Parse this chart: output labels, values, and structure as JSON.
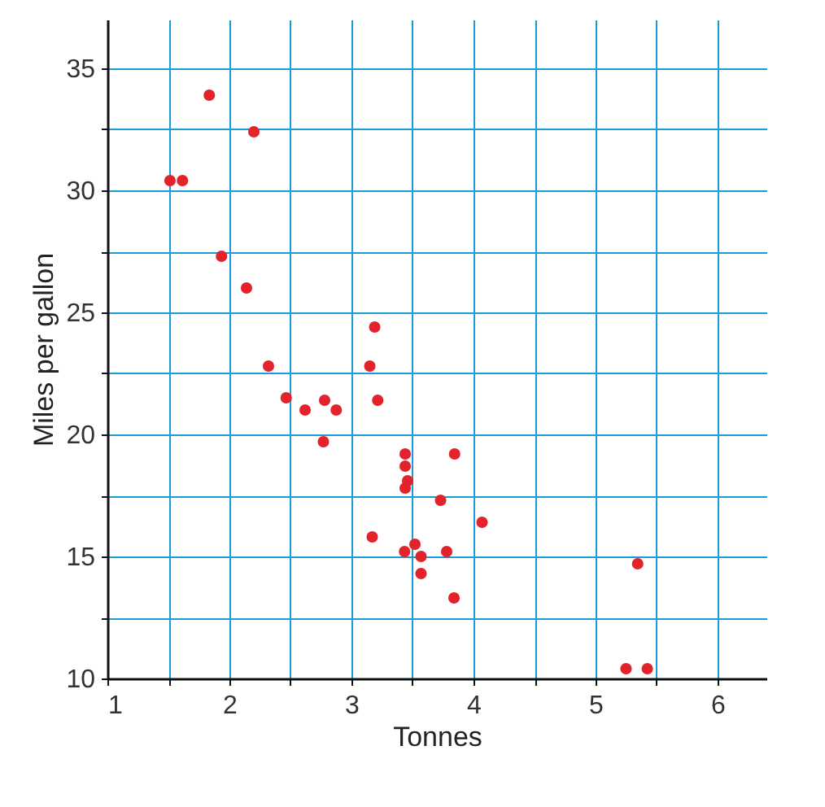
{
  "chart_data": {
    "type": "scatter",
    "xlabel": "Tonnes",
    "ylabel": "Miles per gallon",
    "x": [
      2.62,
      2.875,
      2.32,
      3.215,
      3.44,
      3.46,
      3.57,
      3.19,
      3.15,
      3.44,
      3.44,
      4.07,
      3.73,
      3.78,
      5.25,
      5.424,
      5.345,
      2.2,
      1.615,
      1.835,
      2.465,
      3.52,
      3.435,
      3.84,
      3.845,
      1.935,
      2.14,
      1.513,
      3.17,
      2.77,
      3.57,
      2.78
    ],
    "series": [
      {
        "color": "#e3232b",
        "values": [
          21.0,
          21.0,
          22.8,
          21.4,
          18.7,
          18.1,
          14.3,
          24.4,
          22.8,
          19.2,
          17.8,
          16.4,
          17.3,
          15.2,
          10.4,
          10.4,
          14.7,
          32.4,
          30.4,
          33.9,
          21.5,
          15.5,
          15.2,
          13.3,
          19.2,
          27.3,
          26.0,
          30.4,
          15.8,
          19.7,
          15.0,
          21.4
        ]
      }
    ],
    "xlim": [
      1,
      6.4
    ],
    "ylim": [
      10,
      37
    ],
    "xticks": [
      1,
      {
        "value": 1.5,
        "label": null
      },
      2,
      {
        "value": 2.5,
        "label": null
      },
      3,
      {
        "value": 3.5,
        "label": null
      },
      4,
      {
        "value": 4.5,
        "label": null
      },
      5,
      {
        "value": 5.5,
        "label": null
      },
      6
    ],
    "yticks": [
      10,
      {
        "value": 12.5,
        "label": null
      },
      15,
      {
        "value": 17.5,
        "label": null
      },
      20,
      {
        "value": 22.5,
        "label": null
      },
      25,
      {
        "value": 27.5,
        "label": null
      },
      30,
      {
        "value": 32.5,
        "label": null
      },
      35
    ],
    "grid": true
  }
}
